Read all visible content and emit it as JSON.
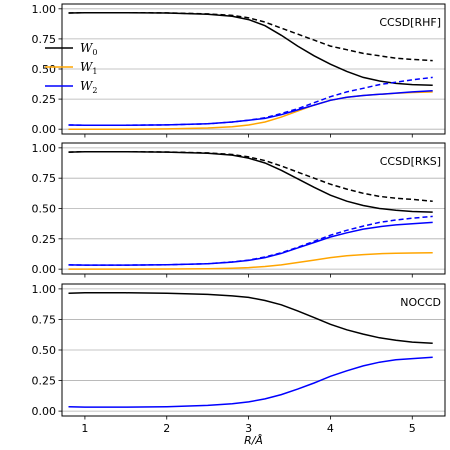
{
  "chart_data": {
    "type": "line",
    "xlabel": "R/Å",
    "x_ticks": [
      1,
      2,
      3,
      4,
      5
    ],
    "y_ticks": [
      0.0,
      0.25,
      0.5,
      0.75,
      1.0
    ],
    "xlim": [
      0.72,
      5.4
    ],
    "ylim": [
      -0.04,
      1.04
    ],
    "grid": "horizontal",
    "legend": {
      "panel": 0,
      "placement": "upper-left",
      "entries": [
        {
          "base": "W",
          "sub": "0",
          "color": "#000000"
        },
        {
          "base": "W",
          "sub": "1",
          "color": "#FFA500"
        },
        {
          "base": "W",
          "sub": "2",
          "color": "#0000FF"
        }
      ]
    },
    "panels": [
      {
        "label": "CCSD[RHF]",
        "series": [
          {
            "name": "W0",
            "color": "#000000",
            "style": "solid",
            "x": [
              0.8,
              1.0,
              1.5,
              2.0,
              2.5,
              2.8,
              3.0,
              3.2,
              3.4,
              3.6,
              3.8,
              4.0,
              4.2,
              4.4,
              4.6,
              4.8,
              5.0,
              5.25
            ],
            "y": [
              0.965,
              0.968,
              0.968,
              0.965,
              0.955,
              0.938,
              0.91,
              0.86,
              0.78,
              0.69,
              0.61,
              0.54,
              0.48,
              0.43,
              0.4,
              0.38,
              0.37,
              0.365
            ]
          },
          {
            "color": "#000000",
            "style": "dashed",
            "x": [
              0.8,
              1.0,
              1.5,
              2.0,
              2.5,
              2.8,
              3.0,
              3.2,
              3.4,
              3.6,
              3.8,
              4.0,
              4.2,
              4.4,
              4.6,
              4.8,
              5.0,
              5.25
            ],
            "y": [
              0.965,
              0.968,
              0.968,
              0.966,
              0.958,
              0.945,
              0.925,
              0.89,
              0.84,
              0.79,
              0.74,
              0.69,
              0.66,
              0.63,
              0.61,
              0.59,
              0.58,
              0.57
            ]
          },
          {
            "name": "W1",
            "color": "#FFA500",
            "style": "solid",
            "x": [
              0.8,
              1.0,
              1.5,
              2.0,
              2.5,
              2.8,
              3.0,
              3.2,
              3.4,
              3.6,
              3.8,
              4.0,
              4.2,
              4.4,
              4.6,
              4.8,
              5.0,
              5.25
            ],
            "y": [
              0.0,
              0.0,
              0.0,
              0.002,
              0.01,
              0.02,
              0.035,
              0.06,
              0.1,
              0.15,
              0.2,
              0.24,
              0.265,
              0.28,
              0.29,
              0.298,
              0.305,
              0.31
            ]
          },
          {
            "name": "W2",
            "color": "#0000FF",
            "style": "solid",
            "x": [
              0.8,
              1.0,
              1.5,
              2.0,
              2.5,
              2.8,
              3.0,
              3.2,
              3.4,
              3.6,
              3.8,
              4.0,
              4.2,
              4.4,
              4.6,
              4.8,
              5.0,
              5.25
            ],
            "y": [
              0.035,
              0.033,
              0.033,
              0.036,
              0.045,
              0.06,
              0.075,
              0.09,
              0.12,
              0.16,
              0.2,
              0.24,
              0.265,
              0.28,
              0.29,
              0.3,
              0.31,
              0.32
            ]
          },
          {
            "color": "#0000FF",
            "style": "dashed",
            "x": [
              0.8,
              1.0,
              1.5,
              2.0,
              2.5,
              2.8,
              3.0,
              3.2,
              3.4,
              3.6,
              3.8,
              4.0,
              4.2,
              4.4,
              4.6,
              4.8,
              5.0,
              5.25
            ],
            "y": [
              0.035,
              0.033,
              0.033,
              0.036,
              0.045,
              0.06,
              0.075,
              0.095,
              0.13,
              0.17,
              0.22,
              0.27,
              0.31,
              0.34,
              0.37,
              0.39,
              0.41,
              0.43
            ]
          }
        ]
      },
      {
        "label": "CCSD[RKS]",
        "series": [
          {
            "color": "#000000",
            "style": "solid",
            "x": [
              0.8,
              1.0,
              1.5,
              2.0,
              2.5,
              2.8,
              3.0,
              3.2,
              3.4,
              3.6,
              3.8,
              4.0,
              4.2,
              4.4,
              4.6,
              4.8,
              5.0,
              5.25
            ],
            "y": [
              0.965,
              0.968,
              0.968,
              0.965,
              0.955,
              0.94,
              0.915,
              0.875,
              0.815,
              0.745,
              0.675,
              0.61,
              0.56,
              0.525,
              0.5,
              0.485,
              0.475,
              0.47
            ]
          },
          {
            "color": "#000000",
            "style": "dashed",
            "x": [
              0.8,
              1.0,
              1.5,
              2.0,
              2.5,
              2.8,
              3.0,
              3.2,
              3.4,
              3.6,
              3.8,
              4.0,
              4.2,
              4.4,
              4.6,
              4.8,
              5.0,
              5.25
            ],
            "y": [
              0.965,
              0.968,
              0.968,
              0.966,
              0.958,
              0.945,
              0.925,
              0.895,
              0.85,
              0.8,
              0.75,
              0.7,
              0.66,
              0.625,
              0.6,
              0.585,
              0.575,
              0.56
            ]
          },
          {
            "color": "#FFA500",
            "style": "solid",
            "x": [
              0.8,
              1.0,
              1.5,
              2.0,
              2.5,
              2.8,
              3.0,
              3.2,
              3.4,
              3.6,
              3.8,
              4.0,
              4.2,
              4.4,
              4.6,
              4.8,
              5.0,
              5.25
            ],
            "y": [
              0.0,
              0.0,
              0.0,
              0.001,
              0.004,
              0.008,
              0.013,
              0.022,
              0.035,
              0.055,
              0.075,
              0.095,
              0.11,
              0.12,
              0.127,
              0.131,
              0.133,
              0.135
            ]
          },
          {
            "color": "#0000FF",
            "style": "solid",
            "x": [
              0.8,
              1.0,
              1.5,
              2.0,
              2.5,
              2.8,
              3.0,
              3.2,
              3.4,
              3.6,
              3.8,
              4.0,
              4.2,
              4.4,
              4.6,
              4.8,
              5.0,
              5.25
            ],
            "y": [
              0.035,
              0.033,
              0.033,
              0.036,
              0.045,
              0.058,
              0.072,
              0.095,
              0.13,
              0.175,
              0.22,
              0.265,
              0.3,
              0.33,
              0.35,
              0.365,
              0.375,
              0.385
            ]
          },
          {
            "color": "#0000FF",
            "style": "dashed",
            "x": [
              0.8,
              1.0,
              1.5,
              2.0,
              2.5,
              2.8,
              3.0,
              3.2,
              3.4,
              3.6,
              3.8,
              4.0,
              4.2,
              4.4,
              4.6,
              4.8,
              5.0,
              5.25
            ],
            "y": [
              0.035,
              0.033,
              0.033,
              0.036,
              0.045,
              0.06,
              0.075,
              0.1,
              0.135,
              0.18,
              0.23,
              0.28,
              0.32,
              0.355,
              0.385,
              0.405,
              0.42,
              0.435
            ]
          }
        ]
      },
      {
        "label": "NOCCD",
        "series": [
          {
            "color": "#000000",
            "style": "solid",
            "x": [
              0.8,
              1.0,
              1.5,
              2.0,
              2.5,
              2.8,
              3.0,
              3.2,
              3.4,
              3.6,
              3.8,
              4.0,
              4.2,
              4.4,
              4.6,
              4.8,
              5.0,
              5.25
            ],
            "y": [
              0.965,
              0.968,
              0.968,
              0.965,
              0.955,
              0.943,
              0.93,
              0.905,
              0.87,
              0.82,
              0.765,
              0.71,
              0.665,
              0.63,
              0.6,
              0.58,
              0.565,
              0.555
            ]
          },
          {
            "color": "#0000FF",
            "style": "solid",
            "x": [
              0.8,
              1.0,
              1.5,
              2.0,
              2.5,
              2.8,
              3.0,
              3.2,
              3.4,
              3.6,
              3.8,
              4.0,
              4.2,
              4.4,
              4.6,
              4.8,
              5.0,
              5.25
            ],
            "y": [
              0.035,
              0.033,
              0.033,
              0.036,
              0.047,
              0.06,
              0.075,
              0.1,
              0.135,
              0.18,
              0.23,
              0.285,
              0.33,
              0.37,
              0.4,
              0.42,
              0.43,
              0.44
            ]
          }
        ]
      }
    ]
  }
}
